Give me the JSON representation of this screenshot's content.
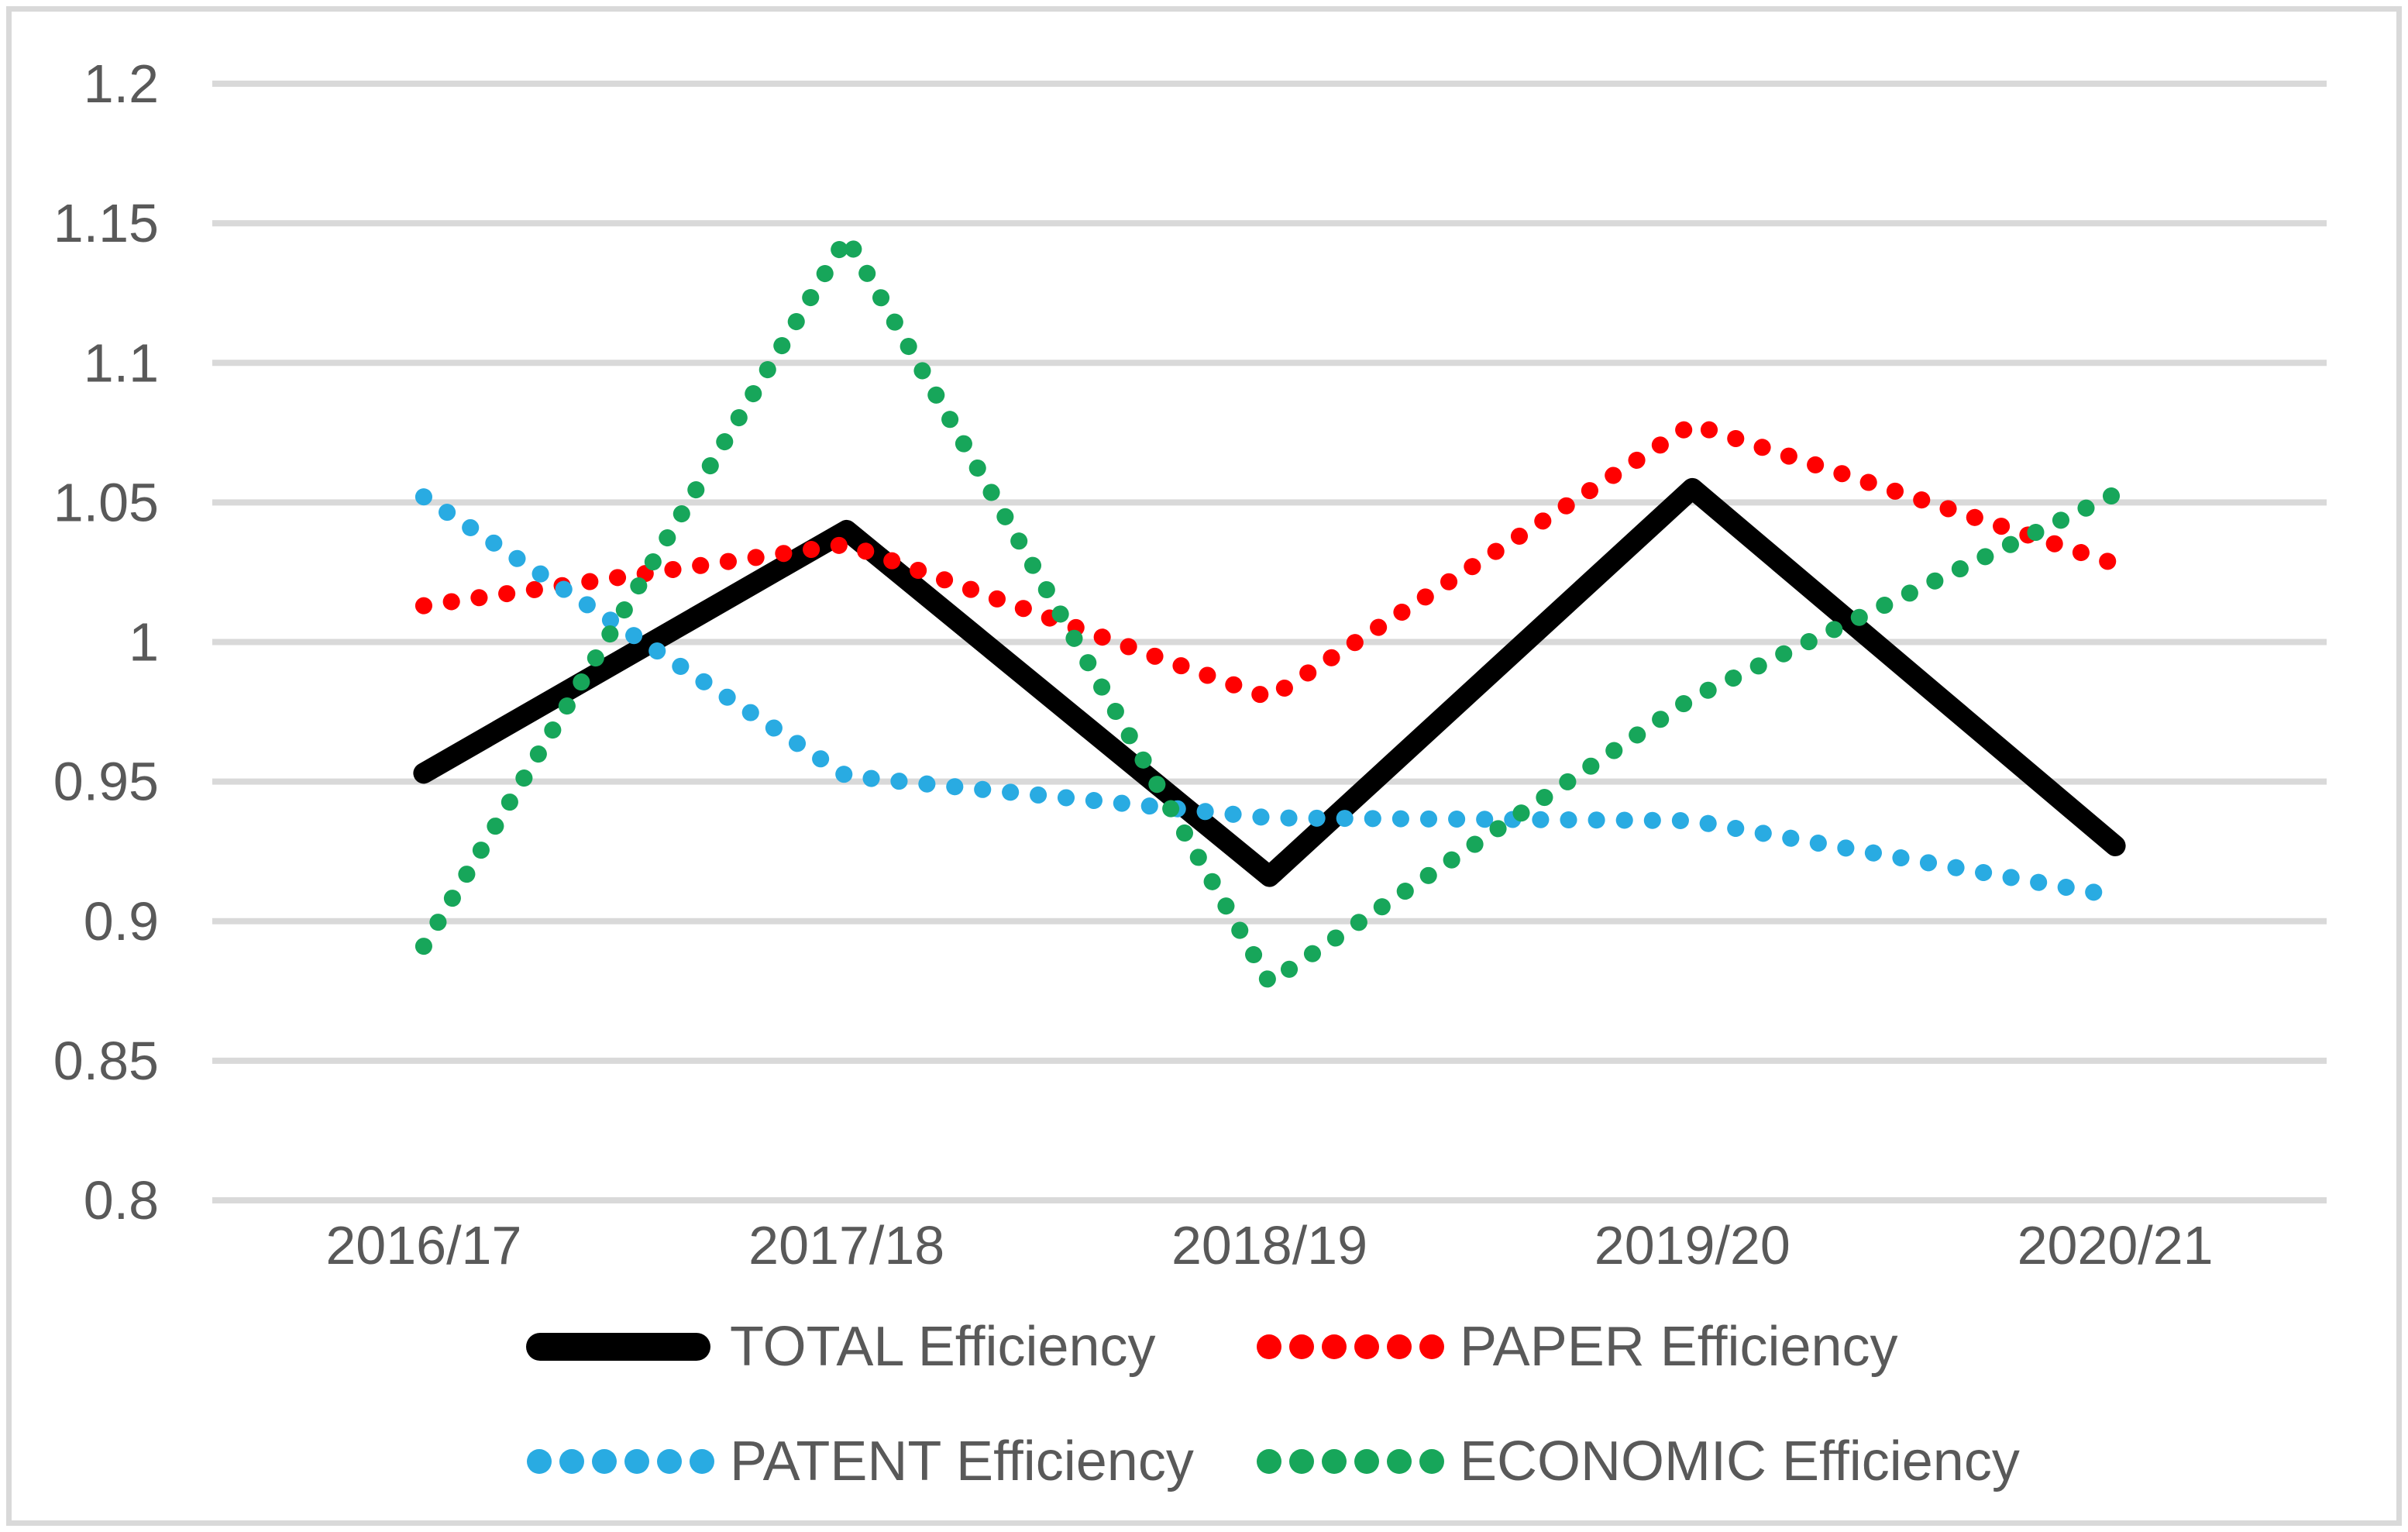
{
  "chart_data": {
    "type": "line",
    "categories": [
      "2016/17",
      "2017/18",
      "2018/19",
      "2019/20",
      "2020/21"
    ],
    "series": [
      {
        "name": "TOTAL Efficiency",
        "color": "#000000",
        "style": "solid",
        "values": [
          0.953,
          1.04,
          0.916,
          1.055,
          0.927
        ]
      },
      {
        "name": "PAPER Efficiency",
        "color": "#ff0000",
        "style": "dotted",
        "values": [
          1.013,
          1.035,
          0.98,
          1.078,
          1.028
        ]
      },
      {
        "name": "PATENT Efficiency",
        "color": "#29abe2",
        "style": "dotted",
        "values": [
          1.052,
          0.952,
          0.937,
          0.936,
          0.909
        ]
      },
      {
        "name": "ECONOMIC Efficiency",
        "color": "#17a65a",
        "style": "dotted",
        "values": [
          0.891,
          1.145,
          0.878,
          0.98,
          1.053
        ]
      }
    ],
    "y_axis": {
      "min": 0.8,
      "max": 1.2,
      "step": 0.05,
      "tick_labels": [
        "1.2",
        "1.15",
        "1.1",
        "1.05",
        "1",
        "0.95",
        "0.9",
        "0.85",
        "0.8"
      ]
    },
    "grid": true,
    "legend_position": "bottom",
    "colors": {
      "gridline": "#d9d9d9",
      "axis_text": "#595959",
      "background": "#ffffff",
      "border": "#d9d9d9"
    }
  }
}
